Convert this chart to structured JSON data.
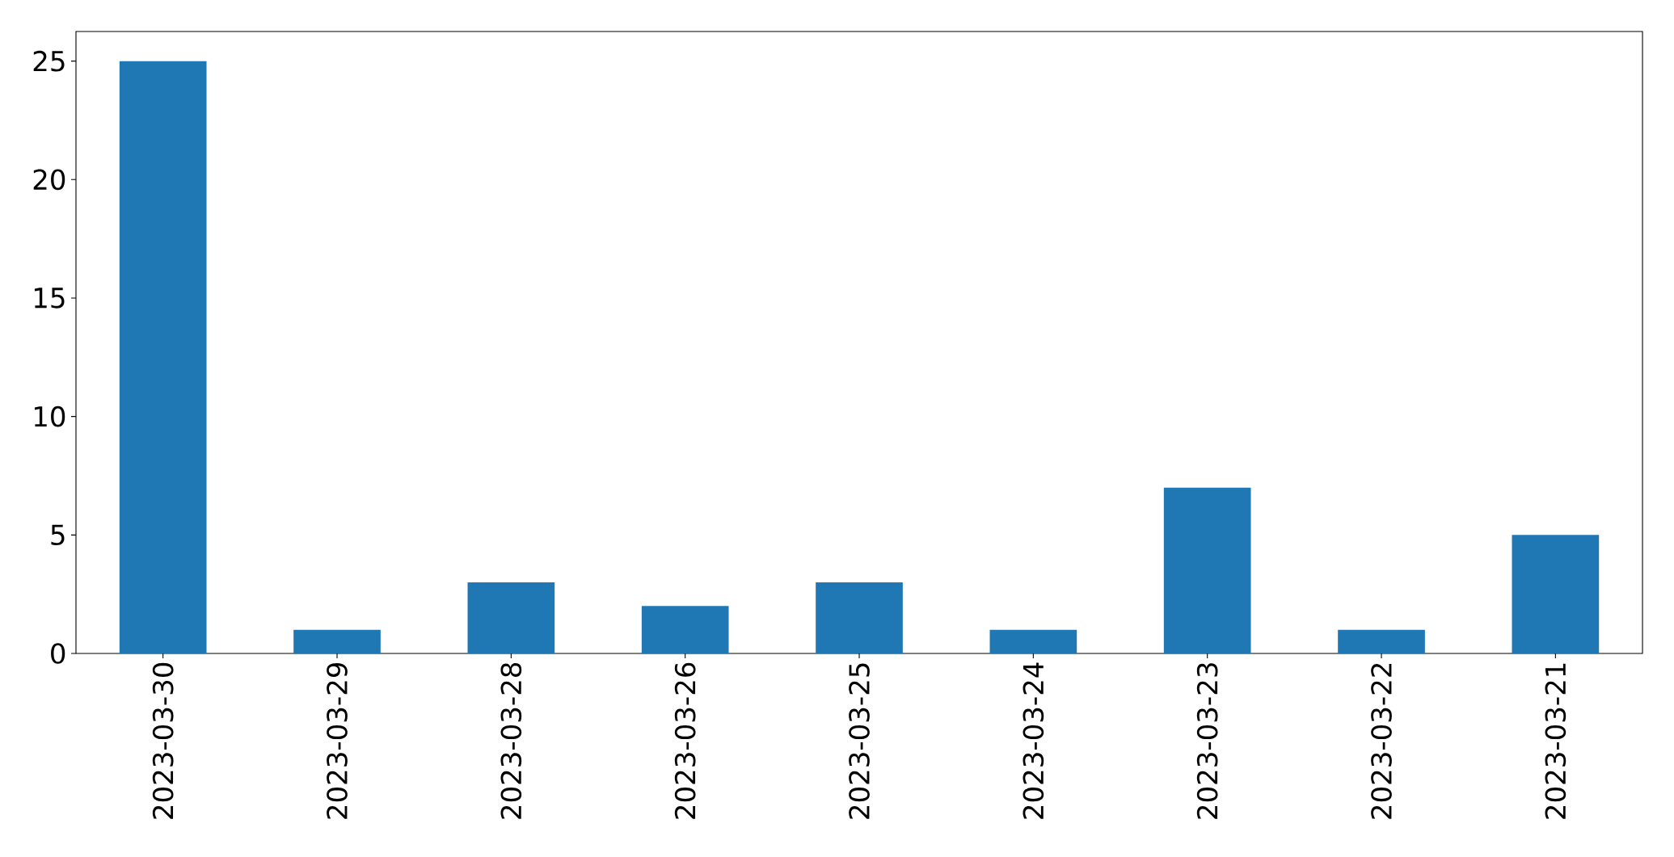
{
  "chart_data": {
    "type": "bar",
    "categories": [
      "2023-03-30",
      "2023-03-29",
      "2023-03-28",
      "2023-03-26",
      "2023-03-25",
      "2023-03-24",
      "2023-03-23",
      "2023-03-22",
      "2023-03-21"
    ],
    "values": [
      25,
      1,
      3,
      2,
      3,
      1,
      7,
      1,
      5
    ],
    "color": "#1f77b4",
    "ylim": [
      0,
      26.25
    ],
    "yticks": [
      0,
      5,
      10,
      15,
      20,
      25
    ]
  }
}
